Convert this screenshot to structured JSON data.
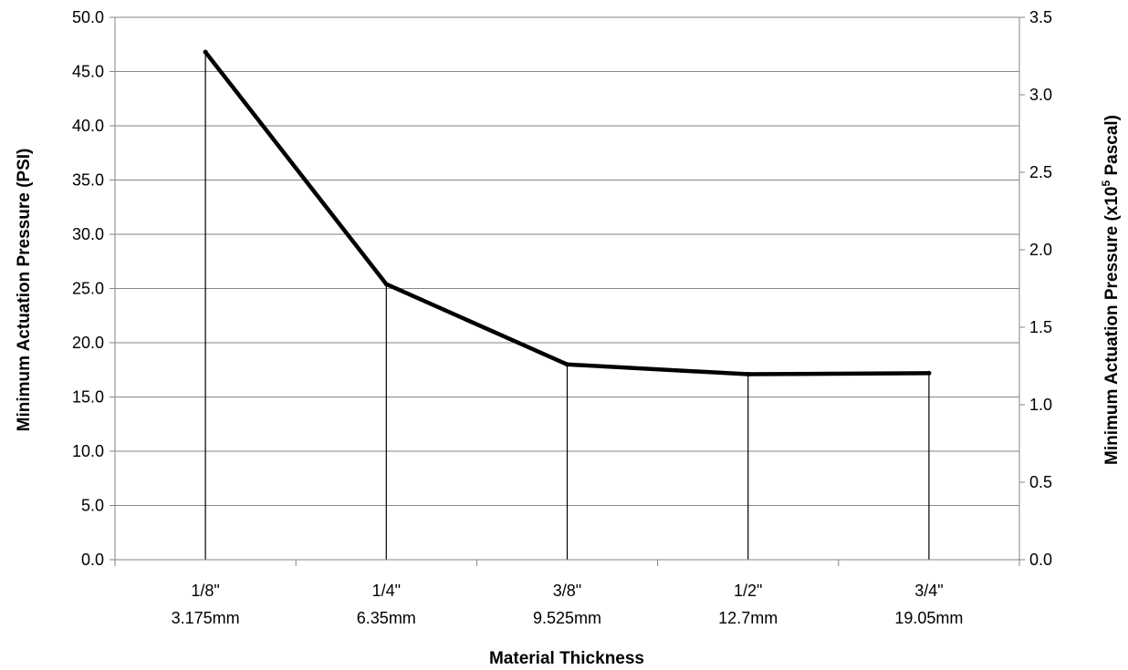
{
  "chart_data": {
    "type": "line",
    "title": "",
    "xlabel": "Material Thickness",
    "ylabel": "Minimum Actuation Pressure (PSI)",
    "y2label_main": "Minimum Actuation Pressure (x10",
    "y2label_sup": "5",
    "y2label_end": " Pascal)",
    "categories": [
      {
        "line1": "1/8\"",
        "line2": "3.175mm"
      },
      {
        "line1": "1/4\"",
        "line2": "6.35mm"
      },
      {
        "line1": "3/8\"",
        "line2": "9.525mm"
      },
      {
        "line1": "1/2\"",
        "line2": "12.7mm"
      },
      {
        "line1": "3/4\"",
        "line2": "19.05mm"
      }
    ],
    "values": [
      46.8,
      25.4,
      18.0,
      17.1,
      17.2
    ],
    "ylim": [
      0,
      50
    ],
    "yticks": [
      "0.0",
      "5.0",
      "10.0",
      "15.0",
      "20.0",
      "25.0",
      "30.0",
      "35.0",
      "40.0",
      "45.0",
      "50.0"
    ],
    "y2lim": [
      0,
      3.5
    ],
    "y2ticks": [
      "0.0",
      "0.5",
      "1.0",
      "1.5",
      "2.0",
      "2.5",
      "3.0",
      "3.5"
    ],
    "grid": true,
    "drop_lines": true,
    "line_color": "#000000",
    "grid_color": "#868686"
  }
}
